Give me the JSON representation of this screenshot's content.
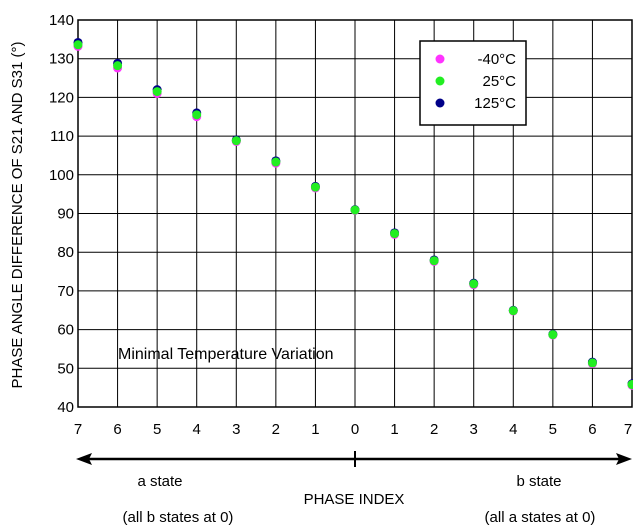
{
  "chart_data": {
    "type": "scatter",
    "ylabel": "PHASE ANGLE DIFFERENCE OF S21 AND S31 (°)",
    "xlabel": "PHASE INDEX",
    "ylim": [
      40,
      140
    ],
    "yticks": [
      40,
      50,
      60,
      70,
      80,
      90,
      100,
      110,
      120,
      130,
      140
    ],
    "categories": [
      "7",
      "6",
      "5",
      "4",
      "3",
      "2",
      "1",
      "0",
      "1",
      "2",
      "3",
      "4",
      "5",
      "6",
      "7"
    ],
    "grid": true,
    "legend_position": "top-right",
    "annotation": "Minimal Temperature Variation",
    "regions": [
      {
        "label": "a state",
        "sublabel": "(all b states at 0)"
      },
      {
        "label": "b state",
        "sublabel": "(all a states at 0)"
      }
    ],
    "series": [
      {
        "name": "-40°C",
        "color": "#ff33ff",
        "values": [
          133.2,
          127.6,
          121.0,
          115.0,
          108.6,
          103.0,
          96.6,
          90.8,
          84.6,
          77.6,
          71.6,
          64.8,
          58.6,
          51.2,
          45.6
        ]
      },
      {
        "name": "125°C",
        "color": "#000088",
        "values": [
          134.2,
          128.8,
          122.0,
          116.0,
          109.0,
          103.6,
          97.0,
          91.0,
          85.0,
          78.0,
          72.0,
          65.0,
          58.8,
          51.6,
          46.0
        ]
      },
      {
        "name": "25°C",
        "color": "#22ee22",
        "values": [
          133.6,
          128.2,
          121.5,
          115.5,
          108.8,
          103.3,
          96.8,
          90.9,
          84.8,
          77.8,
          71.8,
          64.9,
          58.7,
          51.4,
          45.8
        ]
      }
    ]
  }
}
